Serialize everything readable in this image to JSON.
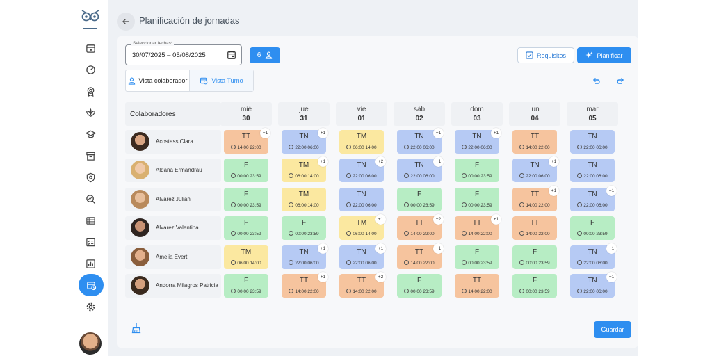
{
  "header": {
    "title": "Planificación de jornadas"
  },
  "toolbar": {
    "date_label": "Seleccionar fechas*",
    "date_value": "30/07/2025 – 05/08/2025",
    "count": "6",
    "requisitos": "Requisitos",
    "planificar": "Planificar",
    "view_collab": "Vista colaborador",
    "view_turno": "Vista Turno",
    "save": "Guardar"
  },
  "grid": {
    "collab_header": "Colaboradores",
    "days": [
      {
        "dow": "mié",
        "num": "30"
      },
      {
        "dow": "jue",
        "num": "31"
      },
      {
        "dow": "vie",
        "num": "01"
      },
      {
        "dow": "sáb",
        "num": "02"
      },
      {
        "dow": "dom",
        "num": "03"
      },
      {
        "dow": "lun",
        "num": "04"
      },
      {
        "dow": "mar",
        "num": "05"
      }
    ],
    "employees": [
      {
        "name": "Acostass Clara",
        "shifts": [
          {
            "code": "TT",
            "time": "14:00 22:00",
            "badge": "+1"
          },
          {
            "code": "TN",
            "time": "22:00 06:00",
            "badge": "+1"
          },
          {
            "code": "TM",
            "time": "06:00 14:00",
            "badge": ""
          },
          {
            "code": "TN",
            "time": "22:00 06:00",
            "badge": "+1"
          },
          {
            "code": "TN",
            "time": "22:00 06:00",
            "badge": "+1"
          },
          {
            "code": "TT",
            "time": "14:00 22:00",
            "badge": ""
          },
          {
            "code": "TN",
            "time": "22:00 06:00",
            "badge": ""
          }
        ]
      },
      {
        "name": "Aldana Ermandrau",
        "shifts": [
          {
            "code": "F",
            "time": "00:00 23:59",
            "badge": ""
          },
          {
            "code": "TM",
            "time": "06:00 14:00",
            "badge": "+1"
          },
          {
            "code": "TN",
            "time": "22:00 06:00",
            "badge": "+2"
          },
          {
            "code": "TN",
            "time": "22:00 06:00",
            "badge": "+1"
          },
          {
            "code": "F",
            "time": "00:00 23:59",
            "badge": ""
          },
          {
            "code": "TN",
            "time": "22:00 06:00",
            "badge": "+1"
          },
          {
            "code": "TN",
            "time": "22:00 06:00",
            "badge": ""
          }
        ]
      },
      {
        "name": "Alvarez Júlian",
        "shifts": [
          {
            "code": "F",
            "time": "00:00 23:59",
            "badge": ""
          },
          {
            "code": "TM",
            "time": "06:00 14:00",
            "badge": ""
          },
          {
            "code": "TN",
            "time": "22:00 06:00",
            "badge": ""
          },
          {
            "code": "F",
            "time": "00:00 23:59",
            "badge": ""
          },
          {
            "code": "F",
            "time": "00:00 23:59",
            "badge": ""
          },
          {
            "code": "TT",
            "time": "14:00 22:00",
            "badge": "+1"
          },
          {
            "code": "TN",
            "time": "22:00 06:00",
            "badge": "+1"
          }
        ]
      },
      {
        "name": "Alvarez Valentina",
        "shifts": [
          {
            "code": "F",
            "time": "00:00 23:59",
            "badge": ""
          },
          {
            "code": "F",
            "time": "00:00 23:59",
            "badge": ""
          },
          {
            "code": "TM",
            "time": "06:00 14:00",
            "badge": "+1"
          },
          {
            "code": "TT",
            "time": "14:00 22:00",
            "badge": "+2"
          },
          {
            "code": "TT",
            "time": "14:00 22:00",
            "badge": "+1"
          },
          {
            "code": "TT",
            "time": "14:00 22:00",
            "badge": ""
          },
          {
            "code": "F",
            "time": "00:00 23:59",
            "badge": ""
          }
        ]
      },
      {
        "name": "Amelia Evert",
        "shifts": [
          {
            "code": "TM",
            "time": "06:00 14:00",
            "badge": ""
          },
          {
            "code": "TN",
            "time": "22:00 06:00",
            "badge": "+1"
          },
          {
            "code": "TN",
            "time": "22:00 06:00",
            "badge": "+1"
          },
          {
            "code": "TT",
            "time": "14:00 22:00",
            "badge": "+1"
          },
          {
            "code": "F",
            "time": "00:00 23:59",
            "badge": ""
          },
          {
            "code": "F",
            "time": "00:00 23:59",
            "badge": ""
          },
          {
            "code": "TN",
            "time": "22:00 06:00",
            "badge": "+1"
          }
        ]
      },
      {
        "name": "Andorra Milagros Patricia",
        "shifts": [
          {
            "code": "F",
            "time": "00:00 23:59",
            "badge": ""
          },
          {
            "code": "TT",
            "time": "14:00 22:00",
            "badge": "+1"
          },
          {
            "code": "TT",
            "time": "14:00 22:00",
            "badge": "+2"
          },
          {
            "code": "F",
            "time": "00:00 23:59",
            "badge": ""
          },
          {
            "code": "TT",
            "time": "14:00 22:00",
            "badge": ""
          },
          {
            "code": "F",
            "time": "00:00 23:59",
            "badge": ""
          },
          {
            "code": "TN",
            "time": "22:00 06:00",
            "badge": "+1"
          }
        ]
      }
    ]
  },
  "colors": {
    "accent": "#2e8ef0",
    "F": "#b7edc4",
    "TN": "#b6caf4",
    "TM": "#fbe8a0",
    "TT": "#f6c49e"
  }
}
